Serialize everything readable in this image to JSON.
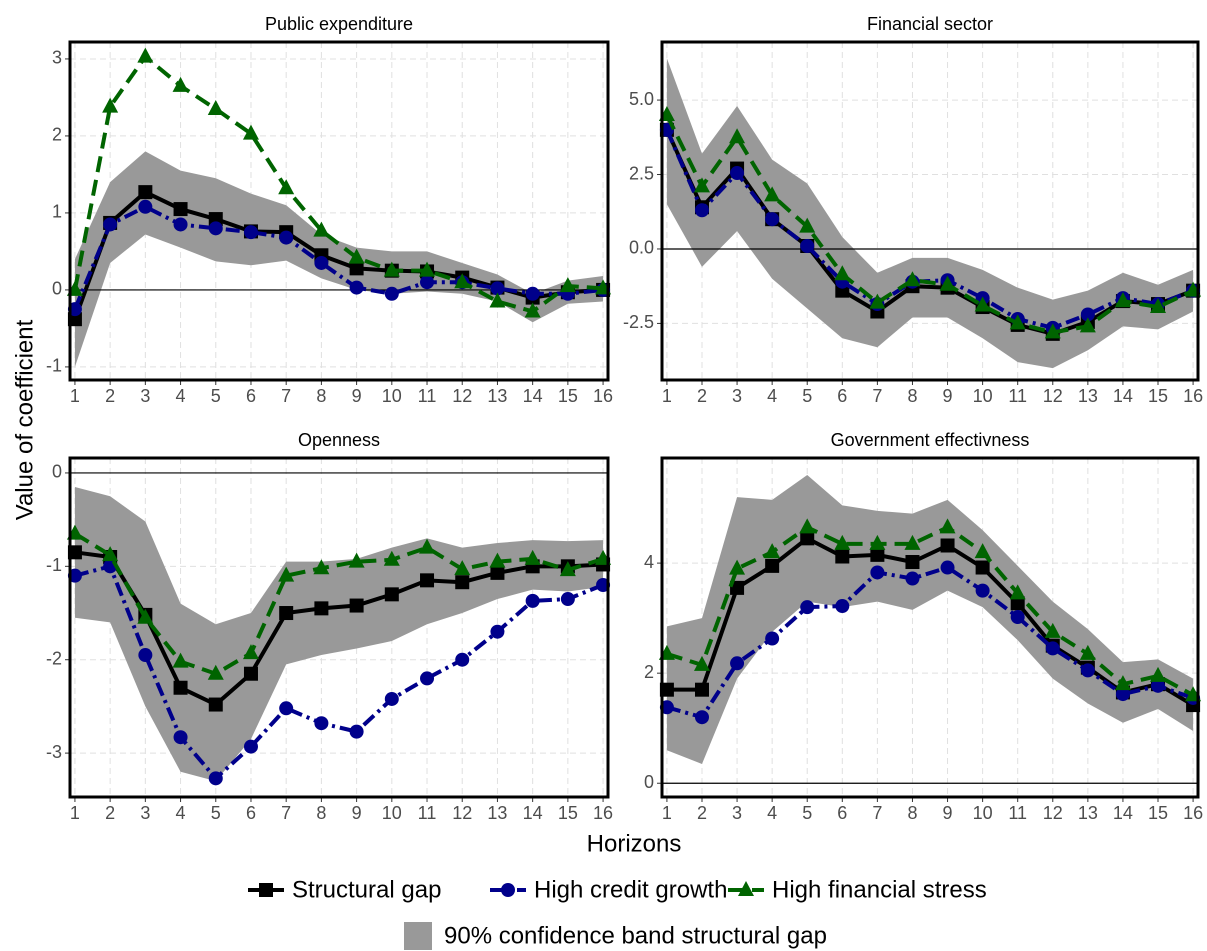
{
  "xlabel": "Horizons",
  "ylabel": "Value of coefficient",
  "legend": "bottom",
  "chart_data": [
    {
      "type": "line",
      "title": "Public expenditure",
      "grid": true,
      "hline": 0,
      "x": [
        1,
        2,
        3,
        4,
        5,
        6,
        7,
        8,
        9,
        10,
        11,
        12,
        13,
        14,
        15,
        16
      ],
      "xlim": [
        0.86,
        16.14
      ],
      "xticks": [
        1,
        2,
        3,
        4,
        5,
        6,
        7,
        8,
        9,
        10,
        11,
        12,
        13,
        14,
        15,
        16
      ],
      "ylim": [
        -1.17,
        3.22
      ],
      "yticks": [
        -1,
        0,
        1,
        2,
        3
      ],
      "band": {
        "name": "90% confidence band structural gap",
        "color": "#999999",
        "lower": [
          -1.0,
          0.35,
          0.72,
          0.55,
          0.37,
          0.32,
          0.38,
          0.15,
          0.0,
          -0.05,
          -0.02,
          -0.05,
          -0.15,
          -0.42,
          -0.18,
          -0.15
        ],
        "upper": [
          0.4,
          1.4,
          1.8,
          1.55,
          1.45,
          1.25,
          1.1,
          0.72,
          0.55,
          0.5,
          0.5,
          0.35,
          0.2,
          -0.05,
          0.12,
          0.18
        ]
      },
      "series": [
        {
          "name": "Structural gap",
          "color": "#000000",
          "marker": "square",
          "dash": "solid",
          "values": [
            -0.38,
            0.87,
            1.27,
            1.05,
            0.92,
            0.76,
            0.75,
            0.45,
            0.28,
            0.25,
            0.24,
            0.16,
            0.03,
            -0.1,
            -0.03,
            0.0
          ]
        },
        {
          "name": "High credit growth",
          "color": "#00008b",
          "marker": "circle",
          "dash": "dashdot",
          "values": [
            -0.25,
            0.85,
            1.08,
            0.85,
            0.8,
            0.75,
            0.68,
            0.35,
            0.03,
            -0.05,
            0.1,
            0.1,
            0.02,
            -0.05,
            -0.05,
            0.0
          ]
        },
        {
          "name": "High financial stress",
          "color": "#006400",
          "marker": "triangle",
          "dash": "dashed",
          "values": [
            0.0,
            2.38,
            3.03,
            2.65,
            2.35,
            2.03,
            1.32,
            0.77,
            0.42,
            0.25,
            0.25,
            0.1,
            -0.15,
            -0.28,
            0.05,
            0.02
          ]
        }
      ]
    },
    {
      "type": "line",
      "title": "Financial sector",
      "grid": true,
      "hline": 0,
      "x": [
        1,
        2,
        3,
        4,
        5,
        6,
        7,
        8,
        9,
        10,
        11,
        12,
        13,
        14,
        15,
        16
      ],
      "xlim": [
        0.86,
        16.14
      ],
      "xticks": [
        1,
        2,
        3,
        4,
        5,
        6,
        7,
        8,
        9,
        10,
        11,
        12,
        13,
        14,
        15,
        16
      ],
      "ylim": [
        -4.4,
        6.95
      ],
      "yticks": [
        -2.5,
        {
          "value": 0,
          "label": "0.0"
        },
        2.5,
        {
          "value": 5,
          "label": "5.0"
        }
      ],
      "band": {
        "color": "#999999",
        "lower": [
          1.5,
          -0.6,
          0.6,
          -1.0,
          -2.0,
          -3.0,
          -3.3,
          -2.3,
          -2.3,
          -3.0,
          -3.8,
          -4.0,
          -3.4,
          -2.6,
          -2.7,
          -2.1
        ],
        "upper": [
          6.4,
          3.2,
          4.8,
          3.0,
          2.2,
          0.4,
          -0.8,
          -0.3,
          -0.3,
          -0.7,
          -1.3,
          -1.7,
          -1.4,
          -0.8,
          -1.2,
          -0.7
        ]
      },
      "series": [
        {
          "color": "#000000",
          "marker": "square",
          "dash": "solid",
          "values": [
            4.0,
            1.4,
            2.7,
            1.0,
            0.1,
            -1.4,
            -2.1,
            -1.25,
            -1.3,
            -1.95,
            -2.55,
            -2.85,
            -2.45,
            -1.75,
            -1.85,
            -1.4
          ]
        },
        {
          "color": "#00008b",
          "marker": "circle",
          "dash": "dashdot",
          "values": [
            4.0,
            1.3,
            2.55,
            1.0,
            0.1,
            -1.1,
            -1.85,
            -1.1,
            -1.05,
            -1.65,
            -2.35,
            -2.65,
            -2.2,
            -1.65,
            -1.85,
            -1.4
          ]
        },
        {
          "color": "#006400",
          "marker": "triangle",
          "dash": "dashed",
          "values": [
            4.5,
            2.1,
            3.75,
            1.8,
            0.75,
            -0.85,
            -1.8,
            -1.05,
            -1.2,
            -1.9,
            -2.5,
            -2.8,
            -2.6,
            -1.75,
            -1.95,
            -1.4
          ]
        }
      ]
    },
    {
      "type": "line",
      "title": "Openness",
      "grid": true,
      "hline": 0,
      "x": [
        1,
        2,
        3,
        4,
        5,
        6,
        7,
        8,
        9,
        10,
        11,
        12,
        13,
        14,
        15,
        16
      ],
      "xlim": [
        0.86,
        16.14
      ],
      "xticks": [
        1,
        2,
        3,
        4,
        5,
        6,
        7,
        8,
        9,
        10,
        11,
        12,
        13,
        14,
        15,
        16
      ],
      "ylim": [
        -3.47,
        0.16
      ],
      "yticks": [
        -3,
        -2,
        -1,
        0
      ],
      "band": {
        "color": "#999999",
        "lower": [
          -1.55,
          -1.6,
          -2.5,
          -3.2,
          -3.3,
          -2.85,
          -2.05,
          -1.95,
          -1.88,
          -1.8,
          -1.62,
          -1.5,
          -1.35,
          -1.25,
          -1.27,
          -1.22
        ],
        "upper": [
          -0.15,
          -0.25,
          -0.52,
          -1.4,
          -1.62,
          -1.5,
          -0.95,
          -0.95,
          -0.92,
          -0.8,
          -0.7,
          -0.8,
          -0.75,
          -0.72,
          -0.73,
          -0.72
        ]
      },
      "series": [
        {
          "color": "#000000",
          "marker": "square",
          "dash": "solid",
          "values": [
            -0.85,
            -0.9,
            -1.52,
            -2.3,
            -2.48,
            -2.15,
            -1.5,
            -1.45,
            -1.42,
            -1.3,
            -1.15,
            -1.17,
            -1.07,
            -1.0,
            -1.0,
            -0.98
          ]
        },
        {
          "color": "#00008b",
          "marker": "circle",
          "dash": "dashdot",
          "values": [
            -1.1,
            -1.0,
            -1.95,
            -2.83,
            -3.27,
            -2.93,
            -2.52,
            -2.68,
            -2.77,
            -2.42,
            -2.2,
            -2.0,
            -1.7,
            -1.37,
            -1.35,
            -1.2
          ]
        },
        {
          "color": "#006400",
          "marker": "triangle",
          "dash": "dashed",
          "values": [
            -0.65,
            -0.88,
            -1.55,
            -2.02,
            -2.15,
            -1.93,
            -1.1,
            -1.02,
            -0.95,
            -0.93,
            -0.8,
            -1.03,
            -0.95,
            -0.92,
            -1.04,
            -0.92
          ]
        }
      ]
    },
    {
      "type": "line",
      "title": "Government effectivness",
      "grid": true,
      "hline": 0,
      "x": [
        1,
        2,
        3,
        4,
        5,
        6,
        7,
        8,
        9,
        10,
        11,
        12,
        13,
        14,
        15,
        16
      ],
      "xlim": [
        0.86,
        16.14
      ],
      "xticks": [
        1,
        2,
        3,
        4,
        5,
        6,
        7,
        8,
        9,
        10,
        11,
        12,
        13,
        14,
        15,
        16
      ],
      "ylim": [
        -0.25,
        5.91
      ],
      "yticks": [
        0,
        2,
        4
      ],
      "band": {
        "color": "#999999",
        "lower": [
          0.6,
          0.35,
          1.9,
          2.75,
          3.3,
          3.2,
          3.3,
          3.15,
          3.5,
          3.2,
          2.6,
          1.9,
          1.45,
          1.1,
          1.35,
          0.95
        ],
        "upper": [
          2.85,
          3.0,
          5.2,
          5.15,
          5.6,
          5.05,
          4.95,
          4.9,
          5.15,
          4.6,
          3.95,
          3.3,
          2.8,
          2.2,
          2.25,
          1.9
        ]
      },
      "series": [
        {
          "color": "#000000",
          "marker": "square",
          "dash": "solid",
          "values": [
            1.7,
            1.7,
            3.55,
            3.95,
            4.45,
            4.12,
            4.15,
            4.02,
            4.32,
            3.92,
            3.27,
            2.5,
            2.1,
            1.65,
            1.8,
            1.42
          ]
        },
        {
          "color": "#00008b",
          "marker": "circle",
          "dash": "dashdot",
          "values": [
            1.38,
            1.2,
            2.18,
            2.63,
            3.2,
            3.22,
            3.83,
            3.72,
            3.92,
            3.5,
            3.02,
            2.45,
            2.05,
            1.62,
            1.77,
            1.55
          ]
        },
        {
          "color": "#006400",
          "marker": "triangle",
          "dash": "dashed",
          "values": [
            2.35,
            2.15,
            3.9,
            4.2,
            4.65,
            4.35,
            4.35,
            4.35,
            4.65,
            4.2,
            3.45,
            2.75,
            2.35,
            1.8,
            1.95,
            1.6
          ]
        }
      ]
    }
  ]
}
